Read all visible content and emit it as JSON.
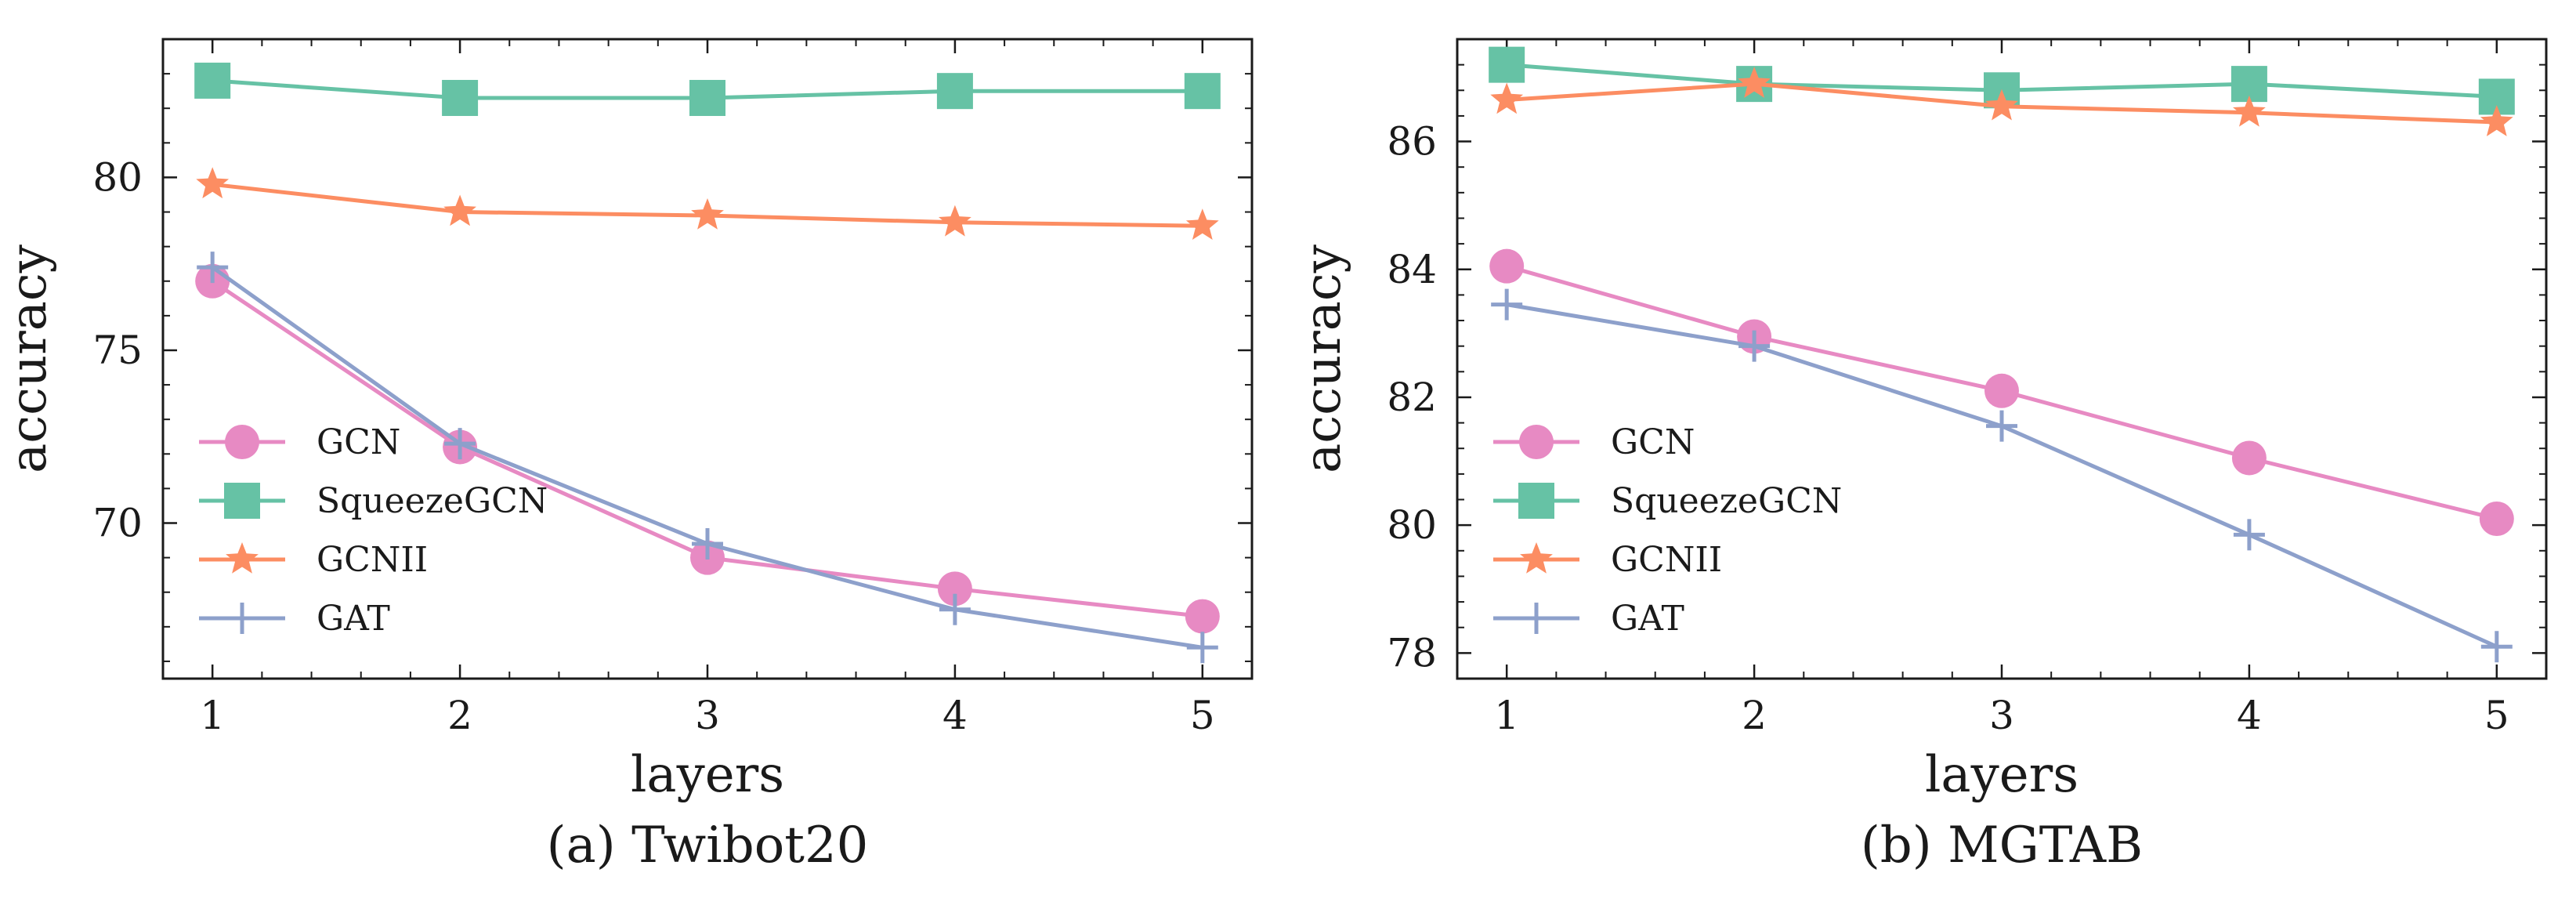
{
  "chart_data": [
    {
      "type": "line",
      "caption": "(a) Twibot20",
      "xlabel": "layers",
      "ylabel": "accuracy",
      "x": [
        1,
        2,
        3,
        4,
        5
      ],
      "xlim": [
        0.8,
        5.2
      ],
      "ylim": [
        65.5,
        84
      ],
      "xticks": [
        "1",
        "2",
        "3",
        "4",
        "5"
      ],
      "yticks": [
        70,
        75,
        80
      ],
      "legend_position": "lower-left",
      "series": [
        {
          "name": "GCN",
          "marker": "circle",
          "color": "#e78ac3",
          "values": [
            77.0,
            72.2,
            69.0,
            68.1,
            67.3
          ]
        },
        {
          "name": "SqueezeGCN",
          "marker": "square",
          "color": "#66c2a5",
          "values": [
            82.8,
            82.3,
            82.3,
            82.5,
            82.5
          ]
        },
        {
          "name": "GCNII",
          "marker": "star",
          "color": "#fc8d62",
          "values": [
            79.8,
            79.0,
            78.9,
            78.7,
            78.6
          ]
        },
        {
          "name": "GAT",
          "marker": "plus",
          "color": "#8da0cb",
          "values": [
            77.4,
            72.3,
            69.4,
            67.5,
            66.4
          ]
        }
      ]
    },
    {
      "type": "line",
      "caption": "(b) MGTAB",
      "xlabel": "layers",
      "ylabel": "accuracy",
      "x": [
        1,
        2,
        3,
        4,
        5
      ],
      "xlim": [
        0.8,
        5.2
      ],
      "ylim": [
        77.6,
        87.6
      ],
      "xticks": [
        "1",
        "2",
        "3",
        "4",
        "5"
      ],
      "yticks": [
        78,
        80,
        82,
        84,
        86
      ],
      "legend_position": "lower-left",
      "series": [
        {
          "name": "GCN",
          "marker": "circle",
          "color": "#e78ac3",
          "values": [
            84.05,
            82.95,
            82.1,
            81.05,
            80.1
          ]
        },
        {
          "name": "SqueezeGCN",
          "marker": "square",
          "color": "#66c2a5",
          "values": [
            87.2,
            86.9,
            86.8,
            86.9,
            86.7
          ]
        },
        {
          "name": "GCNII",
          "marker": "star",
          "color": "#fc8d62",
          "values": [
            86.65,
            86.9,
            86.55,
            86.45,
            86.3
          ]
        },
        {
          "name": "GAT",
          "marker": "plus",
          "color": "#8da0cb",
          "values": [
            83.45,
            82.8,
            81.55,
            79.85,
            78.1
          ]
        }
      ]
    }
  ]
}
